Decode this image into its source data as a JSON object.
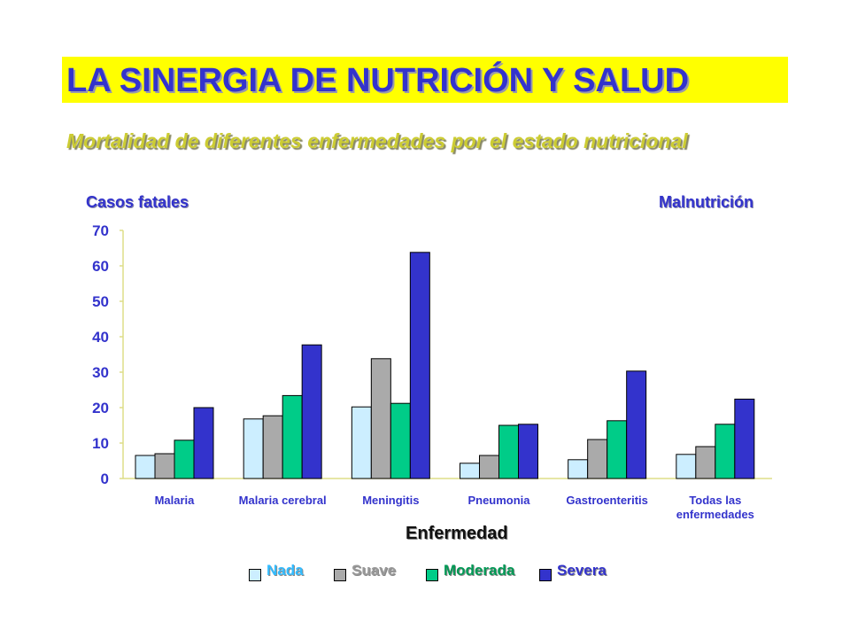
{
  "slide": {
    "title": "LA SINERGIA DE NUTRICIÓN Y SALUD",
    "subtitle": "Mortalidad de diferentes enfermedades por el estado nutricional"
  },
  "colors": {
    "title": "#3333cc",
    "title_bg": "#ffff00",
    "subtitle": "#cccc33",
    "axis_text": "#3333cc"
  },
  "chart_data": {
    "type": "bar",
    "ylabel": "Casos fatales",
    "legend_title": "Malnutrición",
    "xlabel": "Enfermedad",
    "ylim": [
      0,
      70
    ],
    "yticks": [
      0,
      10,
      20,
      30,
      40,
      50,
      60,
      70
    ],
    "grid": false,
    "legend_position": "bottom",
    "categories": [
      [
        "Malaria"
      ],
      [
        "Malaria cerebral"
      ],
      [
        "Meningitis"
      ],
      [
        "Pneumonia"
      ],
      [
        "Gastroenteritis"
      ],
      [
        "Todas las",
        "enfermedades"
      ]
    ],
    "series": [
      {
        "name": "Nada",
        "color": "#cceeff",
        "label_color": "#33bbff",
        "values": [
          6.5,
          16.8,
          20.2,
          4.3,
          5.3,
          6.8
        ]
      },
      {
        "name": "Suave",
        "color": "#aaaaaa",
        "label_color": "#999999",
        "values": [
          7.0,
          17.7,
          33.8,
          6.5,
          11.0,
          9.0
        ]
      },
      {
        "name": "Moderada",
        "color": "#00cc88",
        "label_color": "#009955",
        "values": [
          10.8,
          23.4,
          21.2,
          15.0,
          16.3,
          15.3
        ]
      },
      {
        "name": "Severa",
        "color": "#3333cc",
        "label_color": "#3333cc",
        "values": [
          20.0,
          37.7,
          63.8,
          15.3,
          30.3,
          22.4
        ]
      }
    ]
  }
}
